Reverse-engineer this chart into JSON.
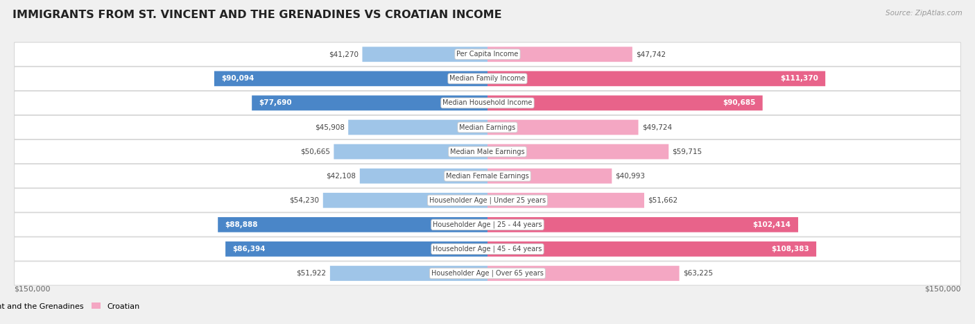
{
  "title": "IMMIGRANTS FROM ST. VINCENT AND THE GRENADINES VS CROATIAN INCOME",
  "source": "Source: ZipAtlas.com",
  "categories": [
    "Per Capita Income",
    "Median Family Income",
    "Median Household Income",
    "Median Earnings",
    "Median Male Earnings",
    "Median Female Earnings",
    "Householder Age | Under 25 years",
    "Householder Age | 25 - 44 years",
    "Householder Age | 45 - 64 years",
    "Householder Age | Over 65 years"
  ],
  "left_values": [
    41270,
    90094,
    77690,
    45908,
    50665,
    42108,
    54230,
    88888,
    86394,
    51922
  ],
  "right_values": [
    47742,
    111370,
    90685,
    49724,
    59715,
    40993,
    51662,
    102414,
    108383,
    63225
  ],
  "left_labels": [
    "$41,270",
    "$90,094",
    "$77,690",
    "$45,908",
    "$50,665",
    "$42,108",
    "$54,230",
    "$88,888",
    "$86,394",
    "$51,922"
  ],
  "right_labels": [
    "$47,742",
    "$111,370",
    "$90,685",
    "$49,724",
    "$59,715",
    "$40,993",
    "$51,662",
    "$102,414",
    "$108,383",
    "$63,225"
  ],
  "max_value": 150000,
  "left_color_normal": "#9fc5e8",
  "left_color_highlight": "#4a86c8",
  "right_color_normal": "#f4a7c3",
  "right_color_highlight": "#e8638a",
  "highlight_threshold": 75000,
  "bg_color": "#f0f0f0",
  "row_bg_color": "#ffffff",
  "legend_left": "Immigrants from St. Vincent and the Grenadines",
  "legend_right": "Croatian",
  "axis_label_left": "$150,000",
  "axis_label_right": "$150,000"
}
